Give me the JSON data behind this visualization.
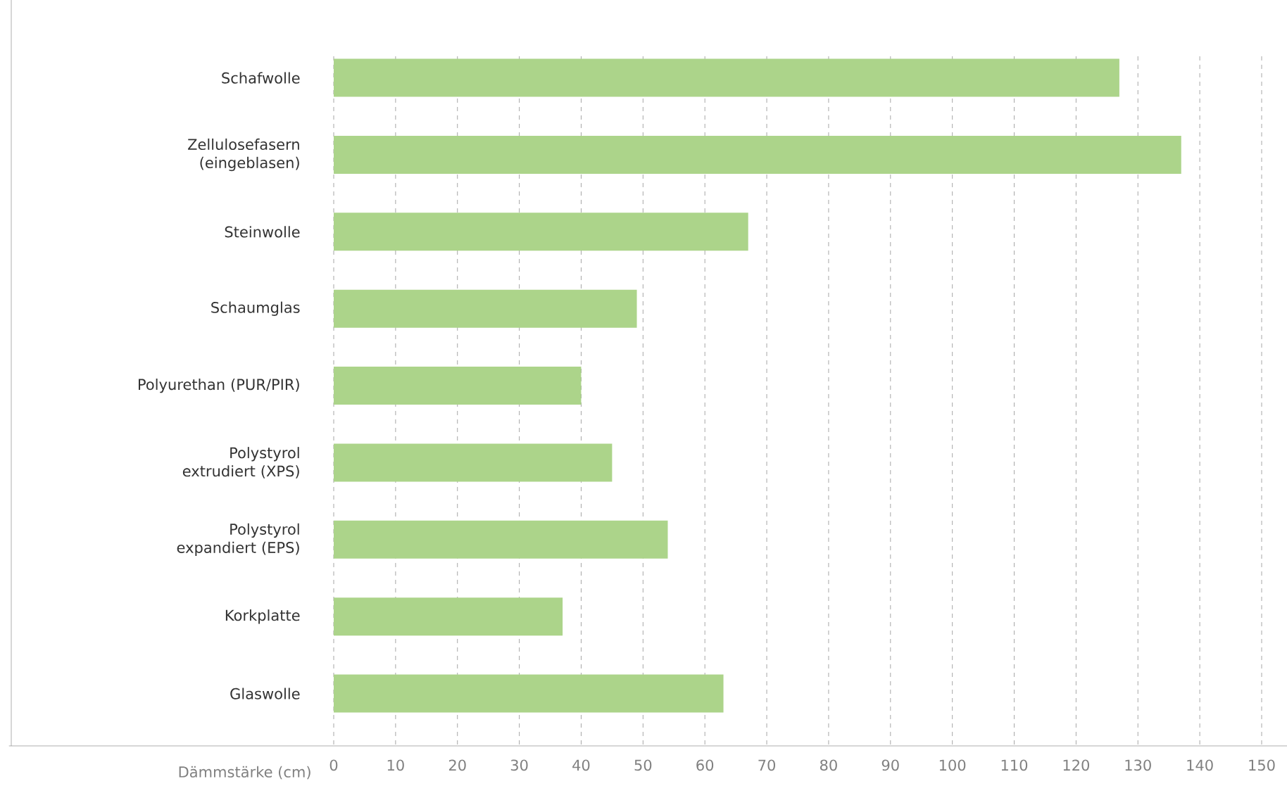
{
  "chart_data": {
    "type": "bar",
    "orientation": "horizontal",
    "xlabel": "Dämmstärke (cm)",
    "categories": [
      "Schafwolle",
      "Zellulosefasern (eingeblasen)",
      "Steinwolle",
      "Schaumglas",
      "Polyurethan (PUR/PIR)",
      "Polystyrol extrudiert (XPS)",
      "Polystyrol expandiert (EPS)",
      "Korkplatte",
      "Glaswolle"
    ],
    "values": [
      127,
      137,
      67,
      49,
      40,
      45,
      54,
      37,
      63
    ],
    "color": "#acd48a",
    "xlim": [
      0,
      150
    ],
    "xticks": [
      0,
      10,
      20,
      30,
      40,
      50,
      60,
      70,
      80,
      90,
      100,
      110,
      120,
      130,
      140,
      150
    ],
    "grid": "x"
  }
}
